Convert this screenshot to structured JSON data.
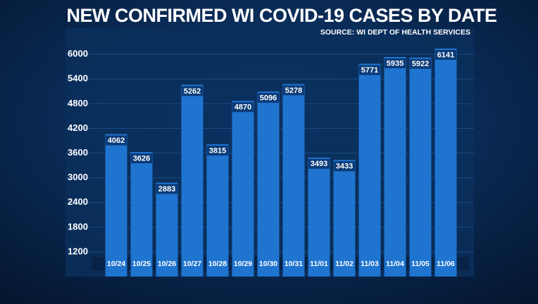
{
  "chart_data": {
    "type": "bar",
    "title": "NEW CONFIRMED WI COVID-19 CASES BY DATE",
    "subtitle": "SOURCE: WI DEPT OF HEALTH SERVICES",
    "categories": [
      "10/24",
      "10/25",
      "10/26",
      "10/27",
      "10/28",
      "10/29",
      "10/30",
      "10/31",
      "11/01",
      "11/02",
      "11/03",
      "11/04",
      "11/05",
      "11/06"
    ],
    "values": [
      4062,
      3626,
      2883,
      5262,
      3815,
      4870,
      5096,
      5278,
      3493,
      3433,
      5771,
      5935,
      5922,
      6141
    ],
    "color": "#1f74cf",
    "ylim": [
      600,
      6200
    ],
    "yticks": [
      1200,
      1800,
      2400,
      3000,
      3600,
      4200,
      4800,
      5400,
      6000
    ],
    "grid": true
  }
}
